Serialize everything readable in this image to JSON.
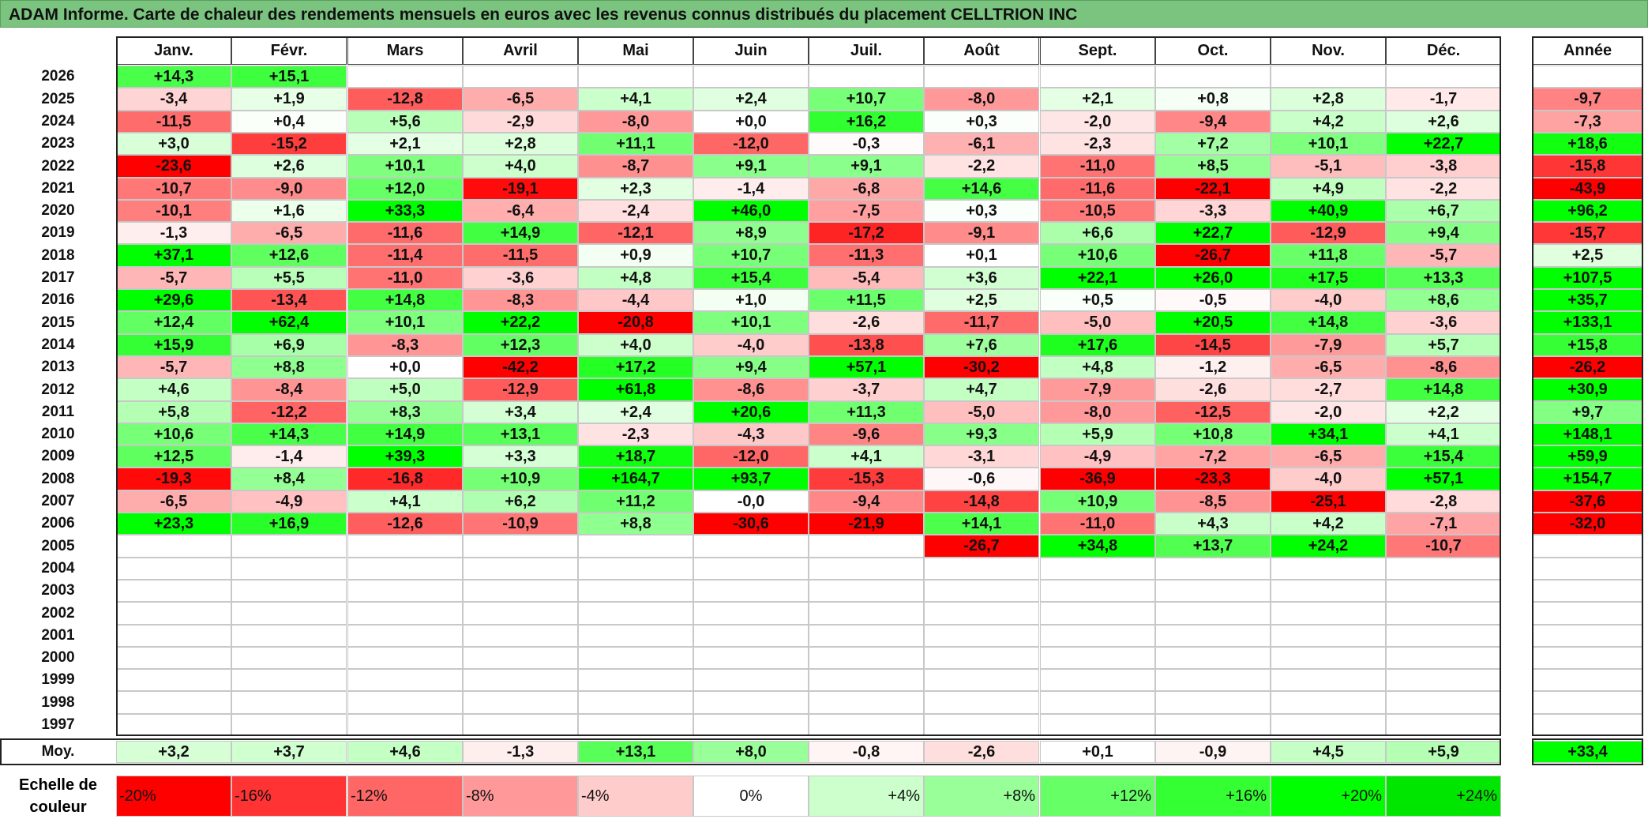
{
  "title": "ADAM Informe. Carte de chaleur des rendements mensuels en euros avec les revenus connus distribués du placement CELLTRION INC",
  "chart_data": {
    "type": "heatmap",
    "title": "ADAM Informe. Carte de chaleur des rendements mensuels en euros avec les revenus connus distribués du placement CELLTRION INC",
    "months": [
      "Janv.",
      "Févr.",
      "Mars",
      "Avril",
      "Mai",
      "Juin",
      "Juil.",
      "Août",
      "Sept.",
      "Oct.",
      "Nov.",
      "Déc."
    ],
    "annual_header": "Année",
    "rows": [
      {
        "year": "2026",
        "values": [
          "+14,3",
          "+15,1",
          "",
          "",
          "",
          "",
          "",
          "",
          "",
          "",
          "",
          ""
        ],
        "annual": ""
      },
      {
        "year": "2025",
        "values": [
          "-3,4",
          "+1,9",
          "-12,8",
          "-6,5",
          "+4,1",
          "+2,4",
          "+10,7",
          "-8,0",
          "+2,1",
          "+0,8",
          "+2,8",
          "-1,7"
        ],
        "annual": "-9,7"
      },
      {
        "year": "2024",
        "values": [
          "-11,5",
          "+0,4",
          "+5,6",
          "-2,9",
          "-8,0",
          "+0,0",
          "+16,2",
          "+0,3",
          "-2,0",
          "-9,4",
          "+4,2",
          "+2,6"
        ],
        "annual": "-7,3"
      },
      {
        "year": "2023",
        "values": [
          "+3,0",
          "-15,2",
          "+2,1",
          "+2,8",
          "+11,1",
          "-12,0",
          "-0,3",
          "-6,1",
          "-2,3",
          "+7,2",
          "+10,1",
          "+22,7"
        ],
        "annual": "+18,6"
      },
      {
        "year": "2022",
        "values": [
          "-23,6",
          "+2,6",
          "+10,1",
          "+4,0",
          "-8,7",
          "+9,1",
          "+9,1",
          "-2,2",
          "-11,0",
          "+8,5",
          "-5,1",
          "-3,8"
        ],
        "annual": "-15,8"
      },
      {
        "year": "2021",
        "values": [
          "-10,7",
          "-9,0",
          "+12,0",
          "-19,1",
          "+2,3",
          "-1,4",
          "-6,8",
          "+14,6",
          "-11,6",
          "-22,1",
          "+4,9",
          "-2,2"
        ],
        "annual": "-43,9"
      },
      {
        "year": "2020",
        "values": [
          "-10,1",
          "+1,6",
          "+33,3",
          "-6,4",
          "-2,4",
          "+46,0",
          "-7,5",
          "+0,3",
          "-10,5",
          "-3,3",
          "+40,9",
          "+6,7"
        ],
        "annual": "+96,2"
      },
      {
        "year": "2019",
        "values": [
          "-1,3",
          "-6,5",
          "-11,6",
          "+14,9",
          "-12,1",
          "+8,9",
          "-17,2",
          "-9,1",
          "+6,6",
          "+22,7",
          "-12,9",
          "+9,4"
        ],
        "annual": "-15,7"
      },
      {
        "year": "2018",
        "values": [
          "+37,1",
          "+12,6",
          "-11,4",
          "-11,5",
          "+0,9",
          "+10,7",
          "-11,3",
          "+0,1",
          "+10,6",
          "-26,7",
          "+11,8",
          "-5,7"
        ],
        "annual": "+2,5"
      },
      {
        "year": "2017",
        "values": [
          "-5,7",
          "+5,5",
          "-11,0",
          "-3,6",
          "+4,8",
          "+15,4",
          "-5,4",
          "+3,6",
          "+22,1",
          "+26,0",
          "+17,5",
          "+13,3"
        ],
        "annual": "+107,5"
      },
      {
        "year": "2016",
        "values": [
          "+29,6",
          "-13,4",
          "+14,8",
          "-8,3",
          "-4,4",
          "+1,0",
          "+11,5",
          "+2,5",
          "+0,5",
          "-0,5",
          "-4,0",
          "+8,6"
        ],
        "annual": "+35,7"
      },
      {
        "year": "2015",
        "values": [
          "+12,4",
          "+62,4",
          "+10,1",
          "+22,2",
          "-20,8",
          "+10,1",
          "-2,6",
          "-11,7",
          "-5,0",
          "+20,5",
          "+14,8",
          "-3,6"
        ],
        "annual": "+133,1"
      },
      {
        "year": "2014",
        "values": [
          "+15,9",
          "+6,9",
          "-8,3",
          "+12,3",
          "+4,0",
          "-4,0",
          "-13,8",
          "+7,6",
          "+17,6",
          "-14,5",
          "-7,9",
          "+5,7"
        ],
        "annual": "+15,8"
      },
      {
        "year": "2013",
        "values": [
          "-5,7",
          "+8,8",
          "+0,0",
          "-42,2",
          "+17,2",
          "+9,4",
          "+57,1",
          "-30,2",
          "+4,8",
          "-1,2",
          "-6,5",
          "-8,6"
        ],
        "annual": "-26,2"
      },
      {
        "year": "2012",
        "values": [
          "+4,6",
          "-8,4",
          "+5,0",
          "-12,9",
          "+61,8",
          "-8,6",
          "-3,7",
          "+4,7",
          "-7,9",
          "-2,6",
          "-2,7",
          "+14,8"
        ],
        "annual": "+30,9"
      },
      {
        "year": "2011",
        "values": [
          "+5,8",
          "-12,2",
          "+8,3",
          "+3,4",
          "+2,4",
          "+20,6",
          "+11,3",
          "-5,0",
          "-8,0",
          "-12,5",
          "-2,0",
          "+2,2"
        ],
        "annual": "+9,7"
      },
      {
        "year": "2010",
        "values": [
          "+10,6",
          "+14,3",
          "+14,9",
          "+13,1",
          "-2,3",
          "-4,3",
          "-9,6",
          "+9,3",
          "+5,9",
          "+10,8",
          "+34,1",
          "+4,1"
        ],
        "annual": "+148,1"
      },
      {
        "year": "2009",
        "values": [
          "+12,5",
          "-1,4",
          "+39,3",
          "+3,3",
          "+18,7",
          "-12,0",
          "+4,1",
          "-3,1",
          "-4,9",
          "-7,2",
          "-6,5",
          "+15,4"
        ],
        "annual": "+59,9"
      },
      {
        "year": "2008",
        "values": [
          "-19,3",
          "+8,4",
          "-16,8",
          "+10,9",
          "+164,7",
          "+93,7",
          "-15,3",
          "-0,6",
          "-36,9",
          "-23,3",
          "-4,0",
          "+57,1"
        ],
        "annual": "+154,7"
      },
      {
        "year": "2007",
        "values": [
          "-6,5",
          "-4,9",
          "+4,1",
          "+6,2",
          "+11,2",
          "-0,0",
          "-9,4",
          "-14,8",
          "+10,9",
          "-8,5",
          "-25,1",
          "-2,8"
        ],
        "annual": "-37,6"
      },
      {
        "year": "2006",
        "values": [
          "+23,3",
          "+16,9",
          "-12,6",
          "-10,9",
          "+8,8",
          "-30,6",
          "-21,9",
          "+14,1",
          "-11,0",
          "+4,3",
          "+4,2",
          "-7,1"
        ],
        "annual": "-32,0"
      },
      {
        "year": "2005",
        "values": [
          "",
          "",
          "",
          "",
          "",
          "",
          "",
          "-26,7",
          "+34,8",
          "+13,7",
          "+24,2",
          "-10,7"
        ],
        "annual": ""
      },
      {
        "year": "2004",
        "values": [
          "",
          "",
          "",
          "",
          "",
          "",
          "",
          "",
          "",
          "",
          "",
          ""
        ],
        "annual": ""
      },
      {
        "year": "2003",
        "values": [
          "",
          "",
          "",
          "",
          "",
          "",
          "",
          "",
          "",
          "",
          "",
          ""
        ],
        "annual": ""
      },
      {
        "year": "2002",
        "values": [
          "",
          "",
          "",
          "",
          "",
          "",
          "",
          "",
          "",
          "",
          "",
          ""
        ],
        "annual": ""
      },
      {
        "year": "2001",
        "values": [
          "",
          "",
          "",
          "",
          "",
          "",
          "",
          "",
          "",
          "",
          "",
          ""
        ],
        "annual": ""
      },
      {
        "year": "2000",
        "values": [
          "",
          "",
          "",
          "",
          "",
          "",
          "",
          "",
          "",
          "",
          "",
          ""
        ],
        "annual": ""
      },
      {
        "year": "1999",
        "values": [
          "",
          "",
          "",
          "",
          "",
          "",
          "",
          "",
          "",
          "",
          "",
          ""
        ],
        "annual": ""
      },
      {
        "year": "1998",
        "values": [
          "",
          "",
          "",
          "",
          "",
          "",
          "",
          "",
          "",
          "",
          "",
          ""
        ],
        "annual": ""
      },
      {
        "year": "1997",
        "values": [
          "",
          "",
          "",
          "",
          "",
          "",
          "",
          "",
          "",
          "",
          "",
          ""
        ],
        "annual": ""
      }
    ],
    "average": {
      "label": "Moy.",
      "values": [
        "+3,2",
        "+3,7",
        "+4,6",
        "-1,3",
        "+13,1",
        "+8,0",
        "-0,8",
        "-2,6",
        "+0,1",
        "-0,9",
        "+4,5",
        "+5,9"
      ],
      "annual": "+33,4"
    },
    "scale": {
      "label": "Echelle de couleur",
      "steps": [
        {
          "label": "-20%",
          "color": "#ff0000"
        },
        {
          "label": "-16%",
          "color": "#ff3333"
        },
        {
          "label": "-12%",
          "color": "#ff6666"
        },
        {
          "label": "-8%",
          "color": "#ff9999"
        },
        {
          "label": "-4%",
          "color": "#ffcccc"
        },
        {
          "label": "0%",
          "color": "#ffffff"
        },
        {
          "label": "+4%",
          "color": "#ccffcc"
        },
        {
          "label": "+8%",
          "color": "#99ff99"
        },
        {
          "label": "+12%",
          "color": "#66ff66"
        },
        {
          "label": "+16%",
          "color": "#33ff33"
        },
        {
          "label": "+20%",
          "color": "#00ff00"
        },
        {
          "label": "+24%",
          "color": "#00e600"
        }
      ]
    }
  }
}
